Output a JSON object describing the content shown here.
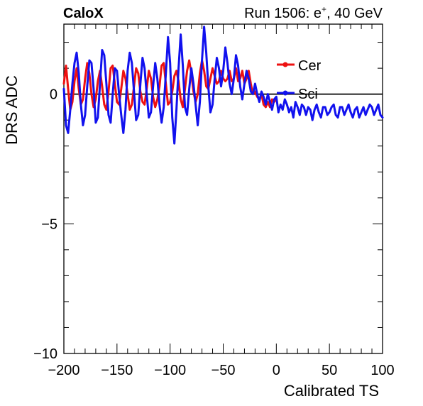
{
  "header": {
    "left": "CaloX",
    "right_prefix": "Run 1506: e",
    "right_sup": "+",
    "right_suffix": ", 40 GeV"
  },
  "chart_data": {
    "type": "line",
    "xlabel": "Calibrated TS",
    "ylabel": "DRS ADC",
    "xlim": [
      -200,
      100
    ],
    "ylim": [
      -10,
      2.7
    ],
    "x_ticks": [
      -200,
      -150,
      -100,
      -50,
      0,
      50,
      100
    ],
    "x_tick_labels": [
      "−200",
      "−150",
      "−100",
      "−50",
      "0",
      "50",
      "100"
    ],
    "y_ticks": [
      -10,
      -5,
      0
    ],
    "y_tick_labels": [
      "−10",
      "−5",
      "0"
    ],
    "zero_line": true,
    "grid": false,
    "legend_position": "top-right",
    "series": [
      {
        "name": "Cer",
        "color": "#ee1111",
        "x": [
          -200,
          -198,
          -196,
          -194,
          -192,
          -190,
          -188,
          -186,
          -184,
          -182,
          -180,
          -178,
          -176,
          -174,
          -172,
          -170,
          -168,
          -166,
          -164,
          -162,
          -160,
          -158,
          -156,
          -154,
          -152,
          -150,
          -148,
          -146,
          -144,
          -142,
          -140,
          -138,
          -136,
          -134,
          -132,
          -130,
          -128,
          -126,
          -124,
          -122,
          -120,
          -118,
          -116,
          -114,
          -112,
          -110,
          -108,
          -106,
          -104,
          -102,
          -100,
          -98,
          -96,
          -94,
          -92,
          -90,
          -88,
          -86,
          -84,
          -82,
          -80,
          -78,
          -76,
          -74,
          -72,
          -70,
          -68,
          -66,
          -64,
          -62,
          -60,
          -58,
          -56,
          -54,
          -52,
          -50,
          -48,
          -46,
          -44,
          -42,
          -40,
          -38,
          -36,
          -34,
          -32,
          -30,
          -28,
          -26,
          -24,
          -22,
          -20,
          -18,
          -16,
          -14,
          -12,
          -10,
          -8,
          -6,
          -4,
          -2,
          0
        ],
        "y": [
          0.4,
          1.1,
          0.2,
          -0.6,
          -0.3,
          0.5,
          1.0,
          0.2,
          -0.4,
          -0.2,
          0.6,
          1.2,
          0.8,
          0.0,
          -0.5,
          -0.2,
          0.5,
          0.9,
          0.3,
          -0.4,
          -0.6,
          0.1,
          1.0,
          1.1,
          0.4,
          -0.3,
          -0.4,
          0.2,
          0.9,
          0.6,
          0.0,
          -0.6,
          -0.4,
          0.3,
          1.0,
          0.8,
          0.1,
          -0.3,
          -0.4,
          0.2,
          0.9,
          0.6,
          -0.1,
          -0.5,
          -0.2,
          0.3,
          1.1,
          1.2,
          0.4,
          -0.4,
          -0.3,
          0.1,
          0.7,
          0.9,
          0.5,
          -0.2,
          -0.5,
          0.2,
          0.9,
          1.3,
          0.8,
          0.1,
          -0.3,
          0.0,
          0.8,
          1.3,
          0.9,
          0.3,
          0.2,
          0.6,
          1.0,
          0.7,
          0.4,
          0.5,
          0.9,
          0.6,
          0.5,
          0.6,
          0.9,
          0.5,
          0.6,
          1.0,
          0.5,
          0.6,
          0.9,
          0.4,
          0.6,
          0.9,
          0.4,
          0.0,
          0.1,
          -0.1,
          -0.2,
          0.0,
          -0.4,
          -0.5,
          -0.3,
          -0.5,
          -0.2,
          -0.3,
          -0.2
        ]
      },
      {
        "name": "Sci",
        "color": "#1111ee",
        "x": [
          -200,
          -198,
          -196,
          -194,
          -192,
          -190,
          -188,
          -186,
          -184,
          -182,
          -180,
          -178,
          -176,
          -174,
          -172,
          -170,
          -168,
          -166,
          -164,
          -162,
          -160,
          -158,
          -156,
          -154,
          -152,
          -150,
          -148,
          -146,
          -144,
          -142,
          -140,
          -138,
          -136,
          -134,
          -132,
          -130,
          -128,
          -126,
          -124,
          -122,
          -120,
          -118,
          -116,
          -114,
          -112,
          -110,
          -108,
          -106,
          -104,
          -102,
          -100,
          -98,
          -96,
          -94,
          -92,
          -90,
          -88,
          -86,
          -84,
          -82,
          -80,
          -78,
          -76,
          -74,
          -72,
          -70,
          -68,
          -66,
          -64,
          -62,
          -60,
          -58,
          -56,
          -54,
          -52,
          -50,
          -48,
          -46,
          -44,
          -42,
          -40,
          -38,
          -36,
          -34,
          -32,
          -30,
          -28,
          -26,
          -24,
          -22,
          -20,
          -18,
          -16,
          -14,
          -12,
          -10,
          -8,
          -6,
          -4,
          -2,
          0,
          2,
          4,
          6,
          8,
          10,
          12,
          14,
          16,
          18,
          20,
          22,
          24,
          26,
          28,
          30,
          32,
          34,
          36,
          38,
          40,
          42,
          44,
          46,
          48,
          50,
          52,
          54,
          56,
          58,
          60,
          62,
          64,
          66,
          68,
          70,
          72,
          74,
          76,
          78,
          80,
          82,
          84,
          86,
          88,
          90,
          92,
          94,
          96,
          98,
          100
        ],
        "y": [
          0.2,
          -1.2,
          -1.5,
          -0.6,
          0.4,
          1.2,
          1.6,
          0.8,
          -0.4,
          -1.2,
          -0.8,
          0.3,
          1.3,
          1.2,
          0.2,
          -1.1,
          -0.9,
          0.4,
          1.7,
          1.5,
          0.4,
          -0.8,
          -1.1,
          0.0,
          1.0,
          0.9,
          0.0,
          -0.8,
          -1.5,
          -0.6,
          0.9,
          1.6,
          1.2,
          0.1,
          -1.0,
          -0.8,
          0.4,
          1.4,
          1.0,
          0.0,
          -0.9,
          -0.7,
          0.3,
          1.2,
          0.6,
          -0.4,
          -1.1,
          -0.5,
          0.8,
          2.2,
          1.2,
          -0.9,
          -1.9,
          -0.6,
          1.0,
          2.3,
          1.1,
          -0.5,
          -0.8,
          0.2,
          1.0,
          0.4,
          -0.4,
          -1.2,
          -0.3,
          1.3,
          2.6,
          1.6,
          0.3,
          -0.7,
          -0.4,
          0.6,
          1.4,
          1.0,
          0.3,
          0.9,
          1.8,
          1.2,
          0.4,
          0.0,
          0.6,
          1.5,
          1.1,
          0.3,
          -0.2,
          0.4,
          0.9,
          0.6,
          0.1,
          0.0,
          0.4,
          0.0,
          -0.3,
          0.1,
          -0.1,
          -0.4,
          0.0,
          -0.3,
          -0.6,
          -0.2,
          -0.1,
          -0.7,
          -0.4,
          -0.6,
          -0.2,
          -0.4,
          -0.7,
          -0.5,
          -0.9,
          -0.3,
          -0.5,
          -0.8,
          -0.4,
          -0.5,
          -0.8,
          -0.5,
          -0.6,
          -1.0,
          -0.6,
          -0.4,
          -0.7,
          -0.9,
          -0.5,
          -0.5,
          -0.8,
          -0.7,
          -0.5,
          -0.4,
          -0.8,
          -0.9,
          -0.5,
          -0.5,
          -0.8,
          -0.6,
          -0.4,
          -0.7,
          -0.9,
          -0.6,
          -0.5,
          -0.9,
          -0.7,
          -0.5,
          -0.8,
          -0.6,
          -0.4,
          -0.5,
          -0.8,
          -0.6,
          -0.4,
          -0.8,
          -0.9
        ]
      }
    ]
  }
}
